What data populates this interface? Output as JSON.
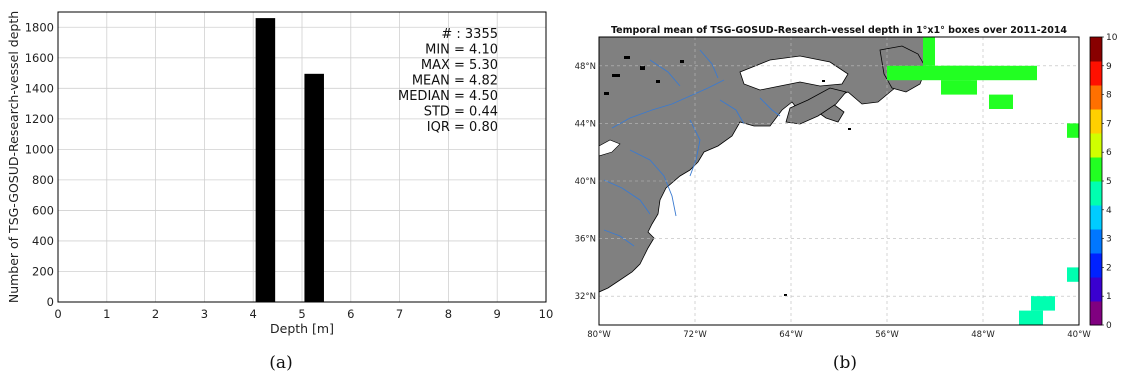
{
  "chart_data": [
    {
      "type": "bar",
      "panel_label": "(a)",
      "xlabel": "Depth [m]",
      "ylabel": "Number of TSG-GOSUD-Research-vessel depth",
      "xlim": [
        0,
        10
      ],
      "ylim": [
        0,
        1900
      ],
      "xticks": [
        0,
        1,
        2,
        3,
        4,
        5,
        6,
        7,
        8,
        9,
        10
      ],
      "yticks": [
        0,
        200,
        400,
        600,
        800,
        1000,
        1200,
        1400,
        1600,
        1800
      ],
      "grid": true,
      "bar_width": 0.4,
      "bars": [
        {
          "x": 4.25,
          "value": 1860
        },
        {
          "x": 5.25,
          "value": 1495
        }
      ],
      "stats_lines": [
        "# : 3355",
        "MIN = 4.10",
        "MAX = 5.30",
        "MEAN = 4.82",
        "MEDIAN = 4.50",
        "STD = 0.44",
        "IQR = 0.80"
      ],
      "colors": {
        "bars": "#000000",
        "grid": "#d0d0d0"
      }
    },
    {
      "type": "heatmap",
      "panel_label": "(b)",
      "title": "Temporal mean of TSG-GOSUD-Research-vessel depth in 1°x1° boxes over 2011-2014",
      "lon_range": [
        -80,
        -40
      ],
      "lat_range": [
        30,
        50
      ],
      "x_tick_values": [
        -80,
        -72,
        -64,
        -56,
        -48,
        -40
      ],
      "x_tick_labels": [
        "80°W",
        "72°W",
        "64°W",
        "56°W",
        "48°W",
        "40°W"
      ],
      "y_tick_values": [
        32,
        36,
        40,
        44,
        48
      ],
      "y_tick_labels": [
        "32°N",
        "36°N",
        "40°N",
        "44°N",
        "48°N"
      ],
      "colorbar": {
        "range": [
          0,
          10
        ],
        "ticks": [
          "0",
          "1",
          "2",
          "3",
          "4",
          "5",
          "6",
          "7",
          "8",
          "9",
          "10"
        ],
        "colors": [
          "#800080",
          "#3a00d0",
          "#0022ff",
          "#0077ff",
          "#00ccff",
          "#00ffb0",
          "#22ff22",
          "#d0ff00",
          "#ffd000",
          "#ff7000",
          "#ff1000",
          "#880000"
        ]
      },
      "cells": [
        {
          "lon": -47.5,
          "lat": 47.5,
          "lon_w": 8,
          "lat_h": 1,
          "value": 5.2
        },
        {
          "lon": -52.5,
          "lat": 47.5,
          "lon_w": 7,
          "lat_h": 1,
          "value": 5.2
        },
        {
          "lon": -52.5,
          "lat": 49.0,
          "lon_w": 1,
          "lat_h": 2,
          "value": 5.2
        },
        {
          "lon": -50.0,
          "lat": 46.5,
          "lon_w": 3,
          "lat_h": 1,
          "value": 5.2
        },
        {
          "lon": -46.5,
          "lat": 45.5,
          "lon_w": 2,
          "lat_h": 1,
          "value": 5.2
        },
        {
          "lon": -40.5,
          "lat": 43.5,
          "lon_w": 1,
          "lat_h": 1,
          "value": 5.0
        },
        {
          "lon": -40.5,
          "lat": 33.5,
          "lon_w": 1,
          "lat_h": 1,
          "value": 4.5
        },
        {
          "lon": -43.0,
          "lat": 31.5,
          "lon_w": 2,
          "lat_h": 1,
          "value": 4.5
        },
        {
          "lon": -44.0,
          "lat": 30.5,
          "lon_w": 2,
          "lat_h": 1,
          "value": 4.5
        }
      ],
      "colors": {
        "land": "#808080",
        "rivers": "#3a7ad0",
        "grid": "#bbbbbb"
      }
    }
  ]
}
